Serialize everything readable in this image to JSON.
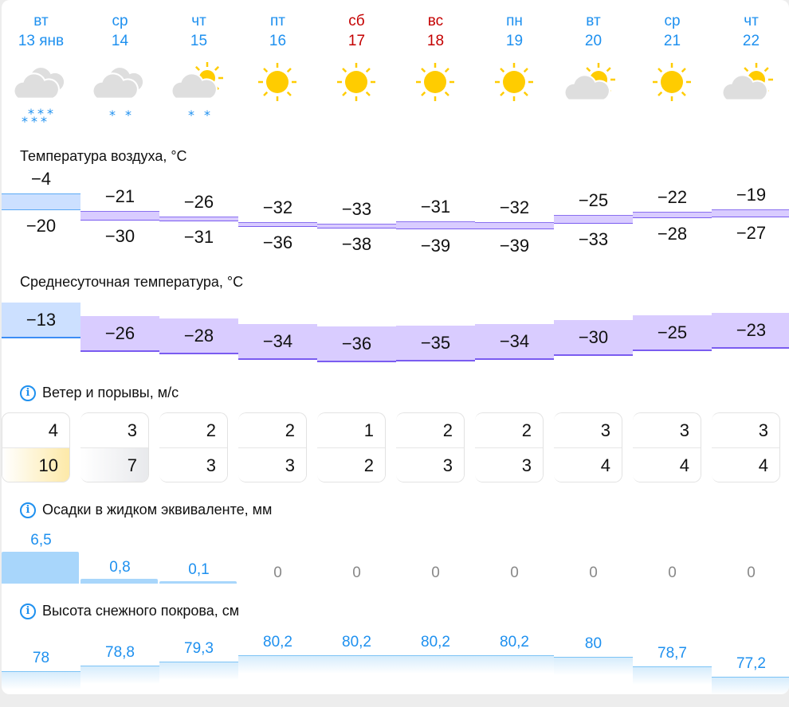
{
  "days": [
    {
      "dow": "вт",
      "date": "13 янв",
      "weekend": false,
      "icon": "cloudy-heavy-snow-icon"
    },
    {
      "dow": "ср",
      "date": "14",
      "weekend": false,
      "icon": "cloudy-light-snow-icon"
    },
    {
      "dow": "чт",
      "date": "15",
      "weekend": false,
      "icon": "partly-cloudy-light-snow-icon"
    },
    {
      "dow": "пт",
      "date": "16",
      "weekend": false,
      "icon": "sun-icon"
    },
    {
      "dow": "сб",
      "date": "17",
      "weekend": true,
      "icon": "sun-icon"
    },
    {
      "dow": "вс",
      "date": "18",
      "weekend": true,
      "icon": "sun-icon"
    },
    {
      "dow": "пн",
      "date": "19",
      "weekend": false,
      "icon": "sun-icon"
    },
    {
      "dow": "вт",
      "date": "20",
      "weekend": false,
      "icon": "partly-cloudy-icon"
    },
    {
      "dow": "ср",
      "date": "21",
      "weekend": false,
      "icon": "sun-icon"
    },
    {
      "dow": "чт",
      "date": "22",
      "weekend": false,
      "icon": "partly-cloudy-icon"
    }
  ],
  "air_temp": {
    "title": "Температура воздуха, °C",
    "max": [
      "−4",
      "−21",
      "−26",
      "−32",
      "−33",
      "−31",
      "−32",
      "−25",
      "−22",
      "−19"
    ],
    "min": [
      "−20",
      "−30",
      "−31",
      "−36",
      "−38",
      "−39",
      "−39",
      "−33",
      "−28",
      "−27"
    ]
  },
  "mean_temp": {
    "title": "Среднесуточная температура, °C",
    "values": [
      "−13",
      "−26",
      "−28",
      "−34",
      "−36",
      "−35",
      "−34",
      "−30",
      "−25",
      "−23"
    ]
  },
  "wind": {
    "title": "Ветер и порывы, м/с",
    "speed": [
      "4",
      "3",
      "2",
      "2",
      "1",
      "2",
      "2",
      "3",
      "3",
      "3"
    ],
    "gusts": [
      "10",
      "7",
      "3",
      "3",
      "2",
      "3",
      "3",
      "4",
      "4",
      "4"
    ]
  },
  "precip": {
    "title": "Осадки в жидком эквиваленте, мм",
    "values": [
      "6,5",
      "0,8",
      "0,1",
      "0",
      "0",
      "0",
      "0",
      "0",
      "0",
      "0"
    ]
  },
  "snow": {
    "title": "Высота снежного покрова, см",
    "values": [
      "78",
      "78,8",
      "79,3",
      "80,2",
      "80,2",
      "80,2",
      "80,2",
      "80",
      "78,7",
      "77,2"
    ]
  },
  "colors": {
    "accent": "#1e90ef",
    "weekend": "#c40000",
    "warm_band": "#cce0ff",
    "cold_band": "#d9ccff",
    "cold_line": "#7a5cf0",
    "sun": "#ffcc00",
    "cloud": "#dedede",
    "snowflake": "#1e90ef",
    "gust_strong": "#fde9a8",
    "gust_medium": "#e8e9ec",
    "precip": "#a8d6fb"
  }
}
